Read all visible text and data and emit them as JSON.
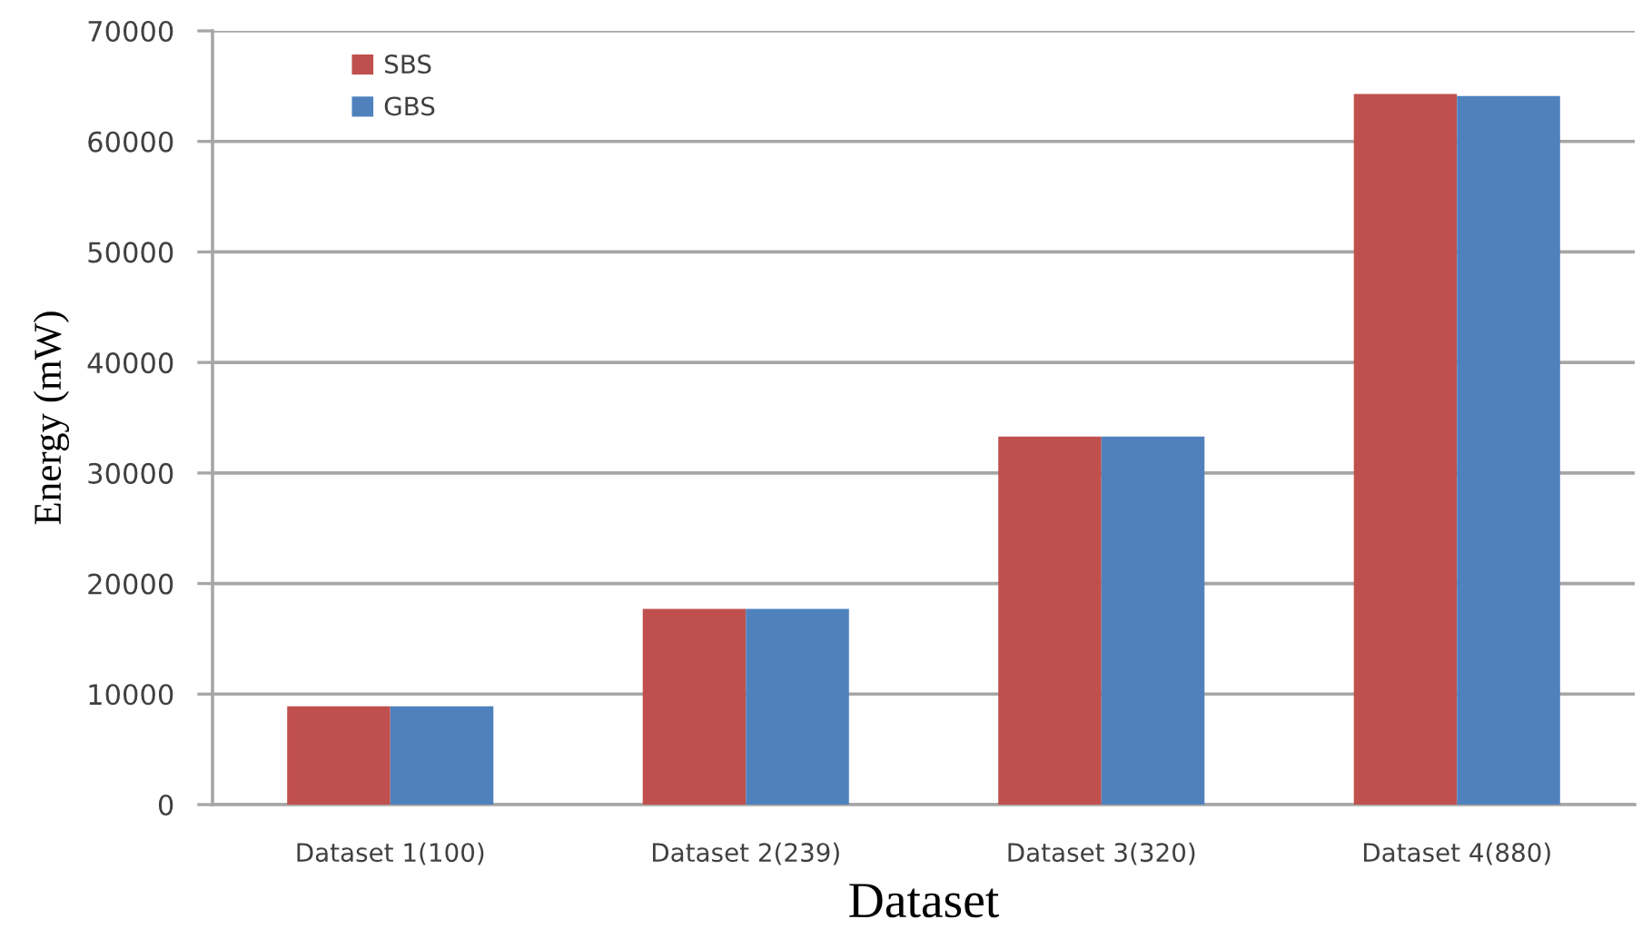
{
  "chart_data": {
    "type": "bar",
    "xlabel": "Dataset",
    "ylabel": "Energy (mW)",
    "categories": [
      "Dataset 1(100)",
      "Dataset 2(239)",
      "Dataset 3(320)",
      "Dataset 4(880)"
    ],
    "series": [
      {
        "name": "SBS",
        "color": "#c0504d",
        "values": [
          8900,
          17700,
          33300,
          64300
        ]
      },
      {
        "name": "GBS",
        "color": "#4f81bd",
        "values": [
          8900,
          17700,
          33300,
          64100
        ]
      }
    ],
    "ylim": [
      0,
      70000
    ],
    "yticks": [
      0,
      10000,
      20000,
      30000,
      40000,
      50000,
      60000,
      70000
    ],
    "grid": "y",
    "legend": "top left"
  }
}
